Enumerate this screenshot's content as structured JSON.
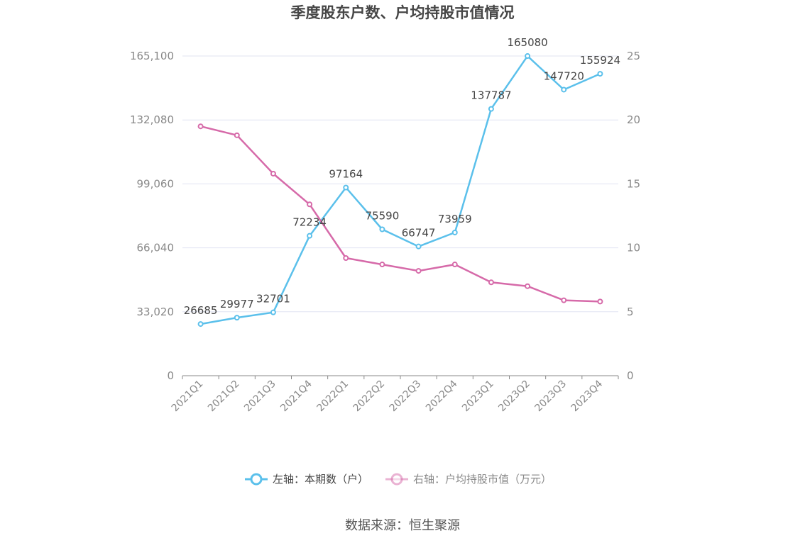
{
  "chart_data": {
    "type": "line",
    "title": "季度股东户数、户均持股市值情况",
    "categories": [
      "2021Q1",
      "2021Q2",
      "2021Q3",
      "2021Q4",
      "2022Q1",
      "2022Q2",
      "2022Q3",
      "2022Q4",
      "2023Q1",
      "2023Q2",
      "2023Q3",
      "2023Q4"
    ],
    "y_left": {
      "ticks": [
        "0",
        "33,020",
        "66,040",
        "99,060",
        "132,080",
        "165,100"
      ],
      "ylim": [
        0,
        165100
      ]
    },
    "y_right": {
      "ticks": [
        "0",
        "5",
        "10",
        "15",
        "20",
        "25"
      ],
      "ylim": [
        0,
        25
      ]
    },
    "series": [
      {
        "name": "左轴：本期数（户）",
        "axis": "left",
        "color": "#5bc0eb",
        "values": [
          26685,
          29977,
          32701,
          72234,
          97164,
          75590,
          66747,
          73959,
          137787,
          165080,
          147720,
          155924
        ],
        "labels": [
          "26685",
          "29977",
          "32701",
          "72234",
          "97164",
          "75590",
          "66747",
          "73959",
          "137787",
          "165080",
          "147720",
          "155924"
        ]
      },
      {
        "name": "右轴：户均持股市值（万元）",
        "axis": "right",
        "color": "#d66aa9",
        "values": [
          19.5,
          18.8,
          15.8,
          13.4,
          9.2,
          8.7,
          8.2,
          8.7,
          7.3,
          7.0,
          5.9,
          5.8
        ]
      }
    ],
    "grid": true,
    "legend_position": "bottom-center"
  },
  "source_text": "数据来源：恒生聚源"
}
